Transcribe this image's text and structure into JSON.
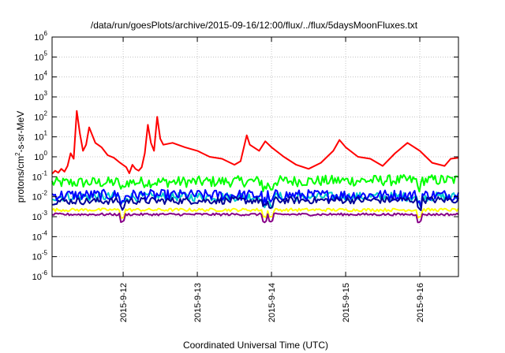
{
  "chart_data": {
    "type": "line",
    "title": "/data/run/goesPlots/archive/2015-09-16/12:00/flux/../flux/5daysMoonFluxes.txt",
    "xlabel": "Coordinated Universal Time (UTC)",
    "ylabel": "protons/cm²-s-sr-MeV",
    "ylabel_parts": {
      "pre": "protons/cm",
      "sup": "2",
      "post": "-s-sr-MeV"
    },
    "yscale": "log",
    "ylim": [
      1e-06,
      1000000.0
    ],
    "xlim_days": [
      "2015-09-11 01:00",
      "2015-09-16 12:30"
    ],
    "grid": true,
    "y_ticks": [
      {
        "base": "10",
        "exp": "6",
        "value": 1000000.0
      },
      {
        "base": "10",
        "exp": "5",
        "value": 100000.0
      },
      {
        "base": "10",
        "exp": "4",
        "value": 10000.0
      },
      {
        "base": "10",
        "exp": "3",
        "value": 1000.0
      },
      {
        "base": "10",
        "exp": "2",
        "value": 100.0
      },
      {
        "base": "10",
        "exp": "1",
        "value": 10.0
      },
      {
        "base": "10",
        "exp": "0",
        "value": 1.0
      },
      {
        "base": "10",
        "exp": "-1",
        "value": 0.1
      },
      {
        "base": "10",
        "exp": "-2",
        "value": 0.01
      },
      {
        "base": "10",
        "exp": "-3",
        "value": 0.001
      },
      {
        "base": "10",
        "exp": "-4",
        "value": 0.0001
      },
      {
        "base": "10",
        "exp": "-5",
        "value": 1e-05
      },
      {
        "base": "10",
        "exp": "-6",
        "value": 1e-06
      }
    ],
    "x_ticks": [
      {
        "label": "2015-9-12",
        "date": "2015-09-12 00:00"
      },
      {
        "label": "2015-9-13",
        "date": "2015-09-13 00:00"
      },
      {
        "label": "2015-9-14",
        "date": "2015-09-14 00:00"
      },
      {
        "label": "2015-9-15",
        "date": "2015-09-15 00:00"
      },
      {
        "label": "2015-9-16",
        "date": "2015-09-16 00:00"
      }
    ],
    "series": [
      {
        "color": "#ff0000",
        "points": [
          [
            "2015-09-11 01:00",
            0.14
          ],
          [
            "2015-09-11 02:00",
            0.2
          ],
          [
            "2015-09-11 03:00",
            0.16
          ],
          [
            "2015-09-11 04:00",
            0.25
          ],
          [
            "2015-09-11 05:00",
            0.18
          ],
          [
            "2015-09-11 06:00",
            0.35
          ],
          [
            "2015-09-11 07:00",
            1.5
          ],
          [
            "2015-09-11 08:00",
            0.8
          ],
          [
            "2015-09-11 09:00",
            200
          ],
          [
            "2015-09-11 10:00",
            15
          ],
          [
            "2015-09-11 11:00",
            2
          ],
          [
            "2015-09-11 12:00",
            4
          ],
          [
            "2015-09-11 13:00",
            30
          ],
          [
            "2015-09-11 15:00",
            5
          ],
          [
            "2015-09-11 17:00",
            3
          ],
          [
            "2015-09-11 19:00",
            1.2
          ],
          [
            "2015-09-11 21:00",
            0.9
          ],
          [
            "2015-09-11 23:00",
            0.5
          ],
          [
            "2015-09-12 01:00",
            0.3
          ],
          [
            "2015-09-12 02:00",
            0.15
          ],
          [
            "2015-09-12 03:00",
            0.4
          ],
          [
            "2015-09-12 04:00",
            0.25
          ],
          [
            "2015-09-12 05:00",
            0.2
          ],
          [
            "2015-09-12 06:00",
            0.3
          ],
          [
            "2015-09-12 07:00",
            1.5
          ],
          [
            "2015-09-12 08:00",
            40
          ],
          [
            "2015-09-12 09:00",
            5
          ],
          [
            "2015-09-12 10:00",
            2
          ],
          [
            "2015-09-12 11:00",
            100
          ],
          [
            "2015-09-12 12:00",
            8
          ],
          [
            "2015-09-12 13:00",
            4
          ],
          [
            "2015-09-12 16:00",
            5
          ],
          [
            "2015-09-12 20:00",
            3
          ],
          [
            "2015-09-13 00:00",
            2
          ],
          [
            "2015-09-13 04:00",
            1.0
          ],
          [
            "2015-09-13 08:00",
            0.8
          ],
          [
            "2015-09-13 12:00",
            0.4
          ],
          [
            "2015-09-13 14:00",
            0.6
          ],
          [
            "2015-09-13 16:00",
            12
          ],
          [
            "2015-09-13 17:00",
            4
          ],
          [
            "2015-09-13 20:00",
            2
          ],
          [
            "2015-09-13 22:00",
            6
          ],
          [
            "2015-09-14 00:00",
            3
          ],
          [
            "2015-09-14 04:00",
            1
          ],
          [
            "2015-09-14 08:00",
            0.4
          ],
          [
            "2015-09-14 12:00",
            0.25
          ],
          [
            "2015-09-14 16:00",
            0.5
          ],
          [
            "2015-09-14 20:00",
            2
          ],
          [
            "2015-09-14 22:00",
            7
          ],
          [
            "2015-09-15 00:00",
            3
          ],
          [
            "2015-09-15 04:00",
            1
          ],
          [
            "2015-09-15 08:00",
            0.8
          ],
          [
            "2015-09-15 12:00",
            0.35
          ],
          [
            "2015-09-15 16:00",
            1.5
          ],
          [
            "2015-09-15 20:00",
            5
          ],
          [
            "2015-09-16 00:00",
            2
          ],
          [
            "2015-09-16 04:00",
            0.5
          ],
          [
            "2015-09-16 08:00",
            0.35
          ],
          [
            "2015-09-16 10:00",
            0.8
          ],
          [
            "2015-09-16 12:30",
            0.9
          ]
        ]
      },
      {
        "color": "#00ff00",
        "points": [
          [
            "2015-09-11 01:00",
            0.05
          ],
          [
            "2015-09-16 12:30",
            0.07
          ]
        ]
      },
      {
        "color": "#00cccc",
        "points": [
          [
            "2015-09-11 01:00",
            0.01
          ],
          [
            "2015-09-16 12:30",
            0.01
          ]
        ]
      },
      {
        "color": "#0000ff",
        "points": [
          [
            "2015-09-11 01:00",
            0.012
          ],
          [
            "2015-09-16 12:30",
            0.012
          ]
        ]
      },
      {
        "color": "#000099",
        "points": [
          [
            "2015-09-11 01:00",
            0.006
          ],
          [
            "2015-09-16 12:30",
            0.007
          ]
        ]
      },
      {
        "color": "#ffff00",
        "points": [
          [
            "2015-09-11 01:00",
            0.0022
          ],
          [
            "2015-09-16 12:30",
            0.0022
          ]
        ]
      },
      {
        "color": "#880088",
        "points": [
          [
            "2015-09-11 01:00",
            0.0013
          ],
          [
            "2015-09-16 12:30",
            0.0013
          ]
        ]
      }
    ]
  }
}
